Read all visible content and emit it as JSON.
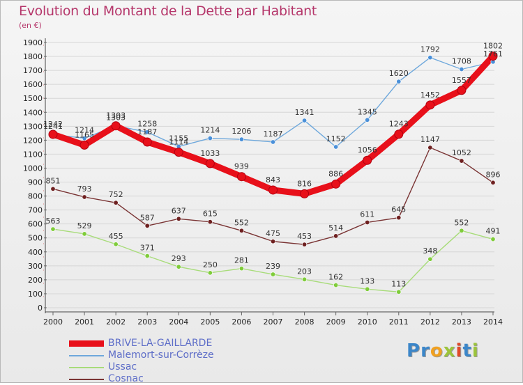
{
  "header": {
    "title": "Evolution du Montant de la Dette par Habitant",
    "subtitle": "(en €)"
  },
  "logo": {
    "text": "Proxiti",
    "letters": [
      {
        "ch": "P",
        "color": "#3b86c9"
      },
      {
        "ch": "r",
        "color": "#3b86c9"
      },
      {
        "ch": "o",
        "color": "#f0a020"
      },
      {
        "ch": "x",
        "color": "#9cc43b"
      },
      {
        "ch": "i",
        "color": "#e04a2a"
      },
      {
        "ch": "t",
        "color": "#3b86c9"
      },
      {
        "ch": "i",
        "color": "#9cc43b"
      }
    ]
  },
  "chart_data": {
    "type": "line",
    "title": "Evolution du Montant de la Dette par Habitant",
    "subtitle": "(en €)",
    "xlabel": "",
    "ylabel": "",
    "ylim": [
      0,
      1900
    ],
    "yticks": [
      0,
      100,
      200,
      300,
      400,
      500,
      600,
      700,
      800,
      900,
      1000,
      1100,
      1200,
      1300,
      1400,
      1500,
      1600,
      1700,
      1800,
      1900
    ],
    "x": [
      "2000",
      "2001",
      "2002",
      "2003",
      "2004",
      "2005",
      "2006",
      "2007",
      "2008",
      "2009",
      "2010",
      "2011",
      "2012",
      "2013",
      "2014"
    ],
    "grid": "horizontal",
    "legend_position": "bottom-left",
    "series": [
      {
        "name": "Malemort-sur-Corrèze",
        "color": "#4a90d9",
        "line_color": "#6ea8dc",
        "values": [
          1241,
          1214,
          1303,
          1258,
          1155,
          1214,
          1206,
          1187,
          1341,
          1152,
          1345,
          1620,
          1792,
          1708,
          1761
        ],
        "labels": [
          "1241",
          "1214",
          "1303",
          "1258",
          "1155",
          "1214",
          "1206",
          "1187",
          "1341",
          "1152",
          "1345",
          "1620",
          "1792",
          "1708",
          "1761"
        ]
      },
      {
        "name": "Ussac",
        "color": "#7fcc3a",
        "line_color": "#a8dc7a",
        "values": [
          563,
          529,
          455,
          371,
          293,
          250,
          281,
          239,
          203,
          162,
          133,
          113,
          348,
          552,
          491
        ],
        "labels": [
          "563",
          "529",
          "455",
          "371",
          "293",
          "250",
          "281",
          "239",
          "203",
          "162",
          "133",
          "113",
          "348",
          "552",
          "491"
        ]
      },
      {
        "name": "Cosnac",
        "color": "#6e2020",
        "line_color": "#7a3434",
        "values": [
          851,
          793,
          752,
          587,
          637,
          615,
          552,
          475,
          453,
          514,
          611,
          645,
          1147,
          1052,
          896
        ],
        "labels": [
          "851",
          "793",
          "752",
          "587",
          "637",
          "615",
          "552",
          "475",
          "453",
          "514",
          "611",
          "645",
          "1147",
          "1052",
          "896"
        ]
      },
      {
        "name": "BRIVE-LA-GAILLARDE",
        "color": "#e8101a",
        "line_color": "#e8101a",
        "values": [
          1242,
          1165,
          1303,
          1187,
          1114,
          1033,
          939,
          843,
          816,
          886,
          1056,
          1243,
          1452,
          1557,
          1802
        ],
        "labels": [
          "1242",
          "1165",
          "1303",
          "1187",
          "1114",
          "1033",
          "939",
          "843",
          "816",
          "886",
          "1056",
          "1243",
          "1452",
          "1557",
          "1802"
        ]
      }
    ],
    "legend": [
      {
        "name": "BRIVE-LA-GAILLARDE",
        "color": "#e8101a"
      },
      {
        "name": "Malemort-sur-Corrèze",
        "color": "#6ea8dc"
      },
      {
        "name": "Ussac",
        "color": "#a8dc7a"
      },
      {
        "name": "Cosnac",
        "color": "#7a3434"
      }
    ]
  }
}
